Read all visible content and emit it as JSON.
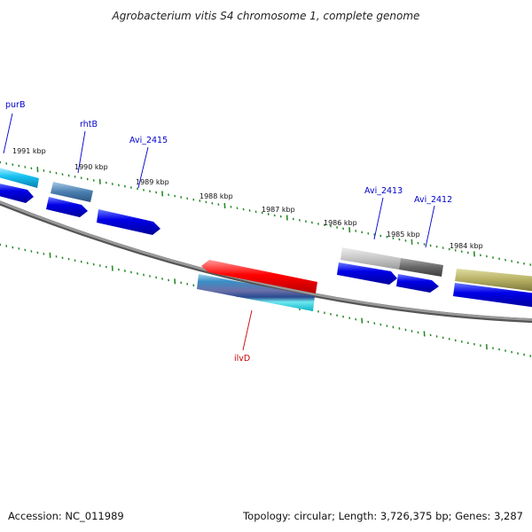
{
  "title": "Agrobacterium vitis S4 chromosome 1, complete genome",
  "footer": {
    "accession": "Accession: NC_011989",
    "summary": "Topology: circular; Length: 3,726,375 bp; Genes: 3,287"
  },
  "colors": {
    "backbone": "#808080",
    "tick": "#2a8a2a",
    "label_forward": "#0000cc",
    "label_reverse": "#cc0000",
    "cds": "#0000e0"
  },
  "kbp_labels": [
    "1991 kbp",
    "1990 kbp",
    "1989 kbp",
    "1988 kbp",
    "1987 kbp",
    "1986 kbp",
    "1985 kbp",
    "1984 kbp"
  ],
  "gene_labels": [
    {
      "name": "purB",
      "strand": "forward"
    },
    {
      "name": "rhtB",
      "strand": "forward"
    },
    {
      "name": "Avi_2415",
      "strand": "forward"
    },
    {
      "name": "Avi_2413",
      "strand": "forward"
    },
    {
      "name": "Avi_2412",
      "strand": "forward"
    },
    {
      "name": "ilvD",
      "strand": "reverse"
    }
  ]
}
